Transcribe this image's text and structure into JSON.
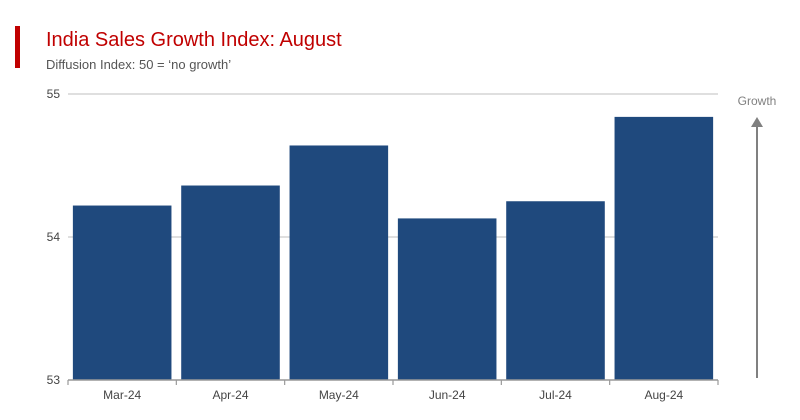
{
  "header": {
    "title": "India Sales Growth Index: August",
    "subtitle": "Diffusion Index: 50 = ‘no growth’"
  },
  "colors": {
    "accent": "#c00000",
    "bar": "#1f497d",
    "grid": "#cccccc",
    "axis": "#999999",
    "tick_text": "#444444",
    "annotation": "#808080"
  },
  "chart_data": {
    "type": "bar",
    "title": "India Sales Growth Index: August",
    "subtitle": "Diffusion Index: 50 = ‘no growth’",
    "categories": [
      "Mar-24",
      "Apr-24",
      "May-24",
      "Jun-24",
      "Jul-24",
      "Aug-24"
    ],
    "values": [
      54.22,
      54.36,
      54.64,
      54.13,
      54.25,
      54.84
    ],
    "ylim": [
      53,
      55
    ],
    "yticks": [
      53,
      54,
      55
    ],
    "xlabel": "",
    "ylabel": "",
    "grid": true,
    "legend": "none",
    "annotation": {
      "label": "Growth",
      "direction": "up"
    }
  }
}
